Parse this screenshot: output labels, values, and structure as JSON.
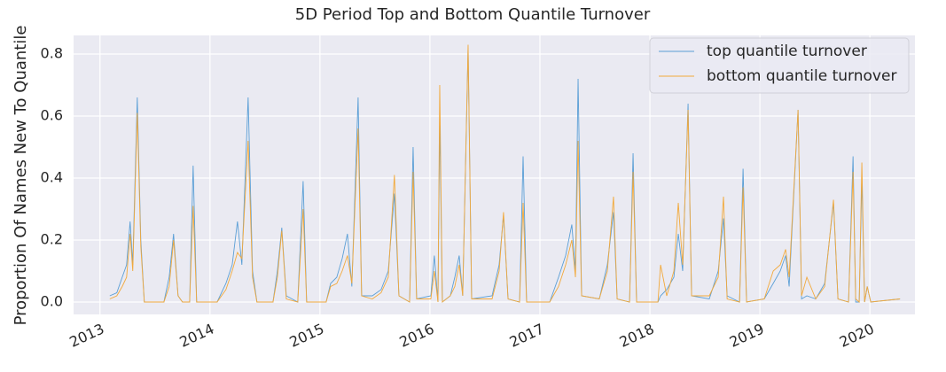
{
  "chart_data": {
    "type": "line",
    "title": "5D Period Top and Bottom Quantile Turnover",
    "ylabel": "Proportion Of Names New To Quantile",
    "x": [
      2013.089,
      2013.153,
      2013.202,
      2013.242,
      2013.274,
      2013.298,
      2013.339,
      2013.371,
      2013.403,
      2013.581,
      2013.629,
      2013.669,
      2013.71,
      2013.75,
      2013.815,
      2013.847,
      2013.879,
      2014.065,
      2014.145,
      2014.202,
      2014.25,
      2014.29,
      2014.347,
      2014.387,
      2014.427,
      2014.573,
      2014.613,
      2014.653,
      2014.694,
      2014.798,
      2014.847,
      2014.879,
      2015.056,
      2015.097,
      2015.153,
      2015.202,
      2015.25,
      2015.29,
      2015.347,
      2015.379,
      2015.476,
      2015.556,
      2015.621,
      2015.677,
      2015.718,
      2015.815,
      2015.847,
      2015.879,
      2016.008,
      2016.04,
      2016.073,
      2016.089,
      2016.113,
      2016.185,
      2016.226,
      2016.266,
      2016.298,
      2016.347,
      2016.379,
      2016.565,
      2016.629,
      2016.669,
      2016.71,
      2016.815,
      2016.847,
      2016.879,
      2017.089,
      2017.169,
      2017.234,
      2017.29,
      2017.323,
      2017.347,
      2017.379,
      2017.54,
      2017.613,
      2017.669,
      2017.702,
      2017.815,
      2017.847,
      2017.879,
      2018.073,
      2018.097,
      2018.153,
      2018.218,
      2018.258,
      2018.298,
      2018.347,
      2018.379,
      2018.54,
      2018.621,
      2018.669,
      2018.702,
      2018.815,
      2018.847,
      2018.879,
      2019.04,
      2019.121,
      2019.185,
      2019.234,
      2019.266,
      2019.347,
      2019.379,
      2019.427,
      2019.508,
      2019.589,
      2019.669,
      2019.71,
      2019.806,
      2019.847,
      2019.871,
      2019.903,
      2019.927,
      2019.952,
      2019.976,
      2020.008,
      2020.274
    ],
    "series": [
      {
        "name": "top quantile turnover",
        "color": "#5b9fd6",
        "values": [
          0.02,
          0.03,
          0.08,
          0.12,
          0.26,
          0.12,
          0.66,
          0.2,
          0,
          0,
          0.08,
          0.22,
          0.02,
          0,
          0,
          0.44,
          0,
          0,
          0.06,
          0.12,
          0.26,
          0.12,
          0.66,
          0.1,
          0,
          0,
          0.1,
          0.24,
          0.02,
          0,
          0.39,
          0,
          0,
          0.06,
          0.08,
          0.14,
          0.22,
          0.05,
          0.66,
          0.02,
          0.02,
          0.04,
          0.1,
          0.35,
          0.02,
          0,
          0.5,
          0.01,
          0.02,
          0.15,
          0,
          0.59,
          0,
          0.02,
          0.08,
          0.15,
          0.02,
          0.82,
          0.01,
          0.02,
          0.12,
          0.28,
          0.01,
          0,
          0.47,
          0,
          0,
          0.08,
          0.15,
          0.25,
          0.1,
          0.72,
          0.02,
          0.01,
          0.12,
          0.29,
          0.01,
          0,
          0.48,
          0,
          0,
          0.02,
          0.04,
          0.08,
          0.22,
          0.1,
          0.64,
          0.02,
          0.01,
          0.1,
          0.27,
          0.02,
          0,
          0.43,
          0,
          0.01,
          0.06,
          0.1,
          0.15,
          0.05,
          0.62,
          0.01,
          0.02,
          0.01,
          0.06,
          0.32,
          0.01,
          0,
          0.47,
          0,
          0,
          0.4,
          0,
          0.05,
          0,
          0.01
        ]
      },
      {
        "name": "bottom quantile turnover",
        "color": "#f2a93b",
        "values": [
          0.01,
          0.02,
          0.05,
          0.08,
          0.22,
          0.1,
          0.61,
          0.18,
          0,
          0,
          0.05,
          0.2,
          0.02,
          0,
          0,
          0.31,
          0,
          0,
          0.04,
          0.1,
          0.16,
          0.14,
          0.52,
          0.08,
          0,
          0,
          0.08,
          0.23,
          0.01,
          0,
          0.3,
          0,
          0,
          0.05,
          0.06,
          0.1,
          0.15,
          0.06,
          0.56,
          0.02,
          0.01,
          0.03,
          0.08,
          0.41,
          0.02,
          0,
          0.42,
          0.01,
          0.01,
          0.1,
          0,
          0.7,
          0,
          0.02,
          0.05,
          0.12,
          0.02,
          0.83,
          0.01,
          0.01,
          0.1,
          0.29,
          0.01,
          0,
          0.32,
          0,
          0,
          0.05,
          0.12,
          0.2,
          0.08,
          0.52,
          0.02,
          0.01,
          0.1,
          0.34,
          0.01,
          0,
          0.42,
          0,
          0,
          0.12,
          0.02,
          0.1,
          0.32,
          0.12,
          0.62,
          0.02,
          0.02,
          0.08,
          0.34,
          0.01,
          0,
          0.37,
          0,
          0.01,
          0.1,
          0.12,
          0.17,
          0.08,
          0.62,
          0.02,
          0.08,
          0.01,
          0.05,
          0.33,
          0.01,
          0,
          0.42,
          0.01,
          0,
          0.45,
          0,
          0.05,
          0,
          0.01
        ]
      }
    ],
    "xlim": [
      2012.76,
      2020.41
    ],
    "xticks": [
      2013,
      2014,
      2015,
      2016,
      2017,
      2018,
      2019,
      2020
    ],
    "ylim": [
      -0.04,
      0.86
    ],
    "yticks": [
      {
        "value": 0,
        "label": "0.0"
      },
      0.2,
      0.4,
      0.6,
      0.8
    ],
    "grid": true,
    "legend": "upper right"
  }
}
